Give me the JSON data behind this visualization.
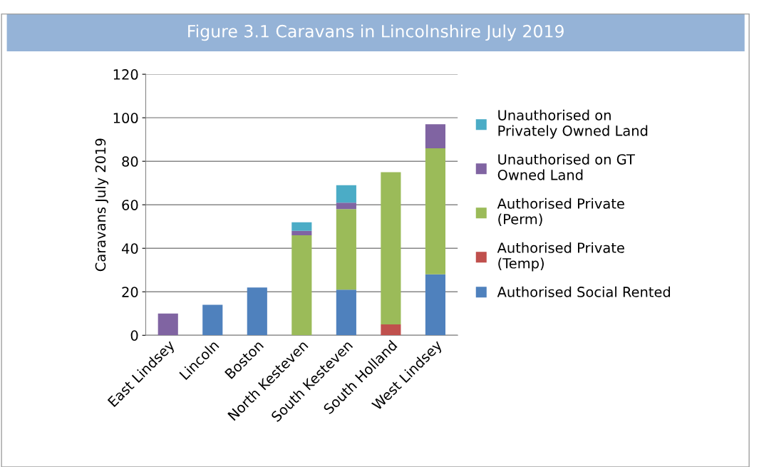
{
  "chart_data": {
    "type": "bar",
    "stacked": true,
    "title": "Figure 3.1 Caravans in Lincolnshire July 2019",
    "ylabel": "Caravans July 2019",
    "categories": [
      "East Lindsey",
      "Lincoln",
      "Boston",
      "North Kesteven",
      "South Kesteven",
      "South Holland",
      "West Lindsey"
    ],
    "series": [
      {
        "name": "Authorised Social Rented",
        "color": "#4f81bd",
        "values": [
          0,
          14,
          22,
          0,
          21,
          0,
          28
        ]
      },
      {
        "name": "Authorised Private\n(Temp)",
        "color": "#c0504d",
        "values": [
          0,
          0,
          0,
          0,
          0,
          5,
          0
        ]
      },
      {
        "name": "Authorised Private\n(Perm)",
        "color": "#9bbb59",
        "values": [
          0,
          0,
          0,
          46,
          37,
          70,
          58
        ]
      },
      {
        "name": "Unauthorised on GT\nOwned Land",
        "color": "#8064a2",
        "values": [
          10,
          0,
          0,
          2,
          3,
          0,
          11
        ]
      },
      {
        "name": "Unauthorised on\nPrivately Owned Land",
        "color": "#4bacc6",
        "values": [
          0,
          0,
          0,
          4,
          8,
          0,
          0
        ]
      }
    ],
    "ylim": [
      0,
      120
    ],
    "yticks": [
      0,
      20,
      40,
      60,
      80,
      100,
      120
    ],
    "grid": "y",
    "legend": "right"
  }
}
